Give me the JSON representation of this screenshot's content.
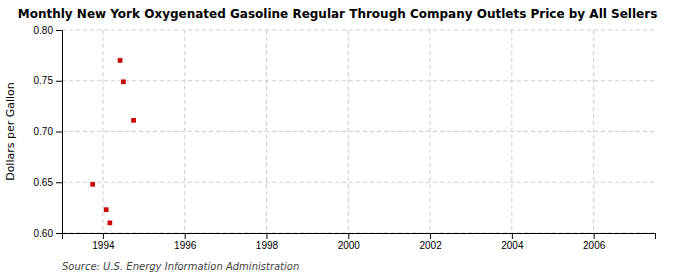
{
  "chart_data": {
    "type": "scatter",
    "title": "Monthly New York Oxygenated Gasoline Regular Through Company Outlets Price by All Sellers",
    "ylabel": "Dollars per Gallon",
    "annotations": [
      "Source: U.S. Energy Information Administration"
    ],
    "x": [
      1993.75,
      1994.08,
      1994.17,
      1994.42,
      1994.5,
      1994.75
    ],
    "values": [
      0.648,
      0.623,
      0.61,
      0.77,
      0.749,
      0.711
    ],
    "color": "#cc0000",
    "marker": "square",
    "xlim": [
      1993.0,
      2007.5
    ],
    "ylim": [
      0.6,
      0.8
    ],
    "xticks": [
      1994,
      1996,
      1998,
      2000,
      2002,
      2004,
      2006
    ],
    "yticks": [
      {
        "value": 0.6,
        "label": "0.60"
      },
      0.65,
      {
        "value": 0.7,
        "label": "0.70"
      },
      0.75,
      {
        "value": 0.8,
        "label": "0.80"
      }
    ],
    "grid": true
  }
}
